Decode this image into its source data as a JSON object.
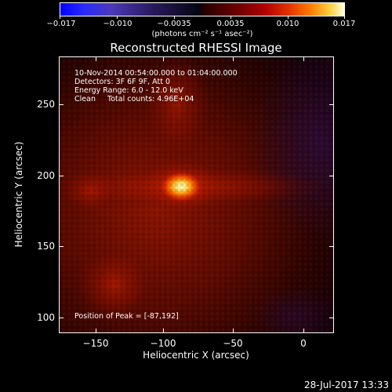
{
  "colorbar": {
    "labels": [
      "−0.017",
      "−0.010",
      "−0.0035",
      "0.0035",
      "0.010",
      "0.017"
    ],
    "units": "(photons cm⁻² s⁻¹ asec⁻²)"
  },
  "plot": {
    "title": "Reconstructed RHESSI Image",
    "info_line1": "10-Nov-2014 00:54:00.000 to 01:04:00.000",
    "info_line2": "Detectors: 3F 6F 9F, Att 0",
    "info_line3": "Energy Range: 6.0 - 12.0 keV",
    "info_line4": "Clean     Total counts: 4.96E+04",
    "peak_text": "Position of Peak = [-87,192]",
    "xlabel": "Heliocentric X (arcsec)",
    "ylabel": "Heliocentric Y (arcsec)",
    "xticks": [
      "−150",
      "−100",
      "−50",
      "0"
    ],
    "yticks": [
      "250",
      "200",
      "150",
      "100"
    ]
  },
  "footer": {
    "timestamp": "28-Jul-2017 13:33"
  },
  "colors": {
    "background": "#000000",
    "peak": "#ffffd0",
    "hot": "#ff5000",
    "mid": "#b01000",
    "low": "#5a0800",
    "negative": "#1a0830"
  },
  "image": {
    "xrange": [
      -170,
      22
    ],
    "yrange": [
      88,
      282
    ],
    "peak_position": [
      -87,
      192
    ]
  }
}
